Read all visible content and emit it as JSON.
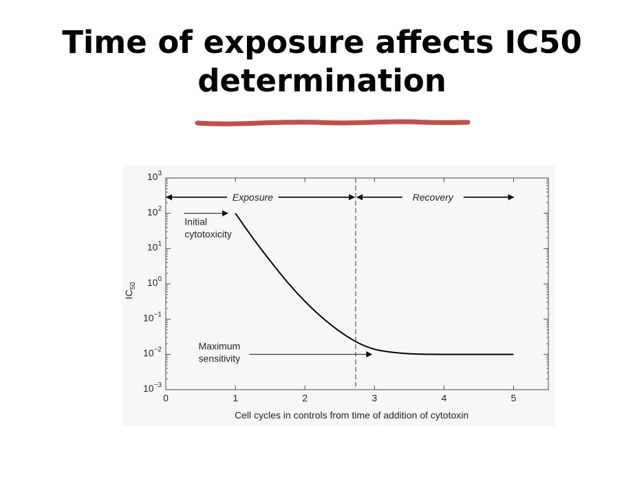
{
  "slide": {
    "title_line1": "Time of exposure affects IC50",
    "title_line2": "determination",
    "underline_color": "#c0504d"
  },
  "chart_data": {
    "type": "line",
    "title": "",
    "xlabel": "Cell cycles in controls from time of addition of cytotoxin",
    "ylabel_main": "IC",
    "ylabel_sub": "50",
    "xlim": [
      0,
      5.5
    ],
    "ylim_log10": [
      -3,
      3
    ],
    "y_scale": "log",
    "x_ticks": [
      0,
      1,
      2,
      3,
      4,
      5
    ],
    "x_tick_labels": [
      "0",
      "1",
      "2",
      "3",
      "4",
      "5"
    ],
    "y_ticks_log10": [
      3,
      2,
      1,
      0,
      -1,
      -2,
      -3
    ],
    "y_tick_labels": [
      {
        "base": "10",
        "exp": "3"
      },
      {
        "base": "10",
        "exp": "2"
      },
      {
        "base": "10",
        "exp": "1"
      },
      {
        "base": "10",
        "exp": "0"
      },
      {
        "base": "10",
        "exp": "−1"
      },
      {
        "base": "10",
        "exp": "−2"
      },
      {
        "base": "10",
        "exp": "−3"
      }
    ],
    "series": [
      {
        "x": [
          1.0,
          1.25,
          1.5,
          1.75,
          2.0,
          2.25,
          2.5,
          2.75,
          3.0,
          3.25,
          3.5,
          3.75,
          4.0,
          4.5,
          5.0
        ],
        "y": [
          100,
          20,
          4.5,
          1.1,
          0.32,
          0.11,
          0.045,
          0.022,
          0.014,
          0.0115,
          0.0104,
          0.0101,
          0.01,
          0.01,
          0.01
        ]
      }
    ],
    "divider_x": 2.73,
    "annotations": {
      "exposure": "Exposure",
      "recovery": "Recovery",
      "initial_line1": "Initial",
      "initial_line2": "cytotoxicity",
      "maximum_line1": "Maximum",
      "maximum_line2": "sensitivity"
    },
    "line_color": "#000000",
    "grid": false
  }
}
